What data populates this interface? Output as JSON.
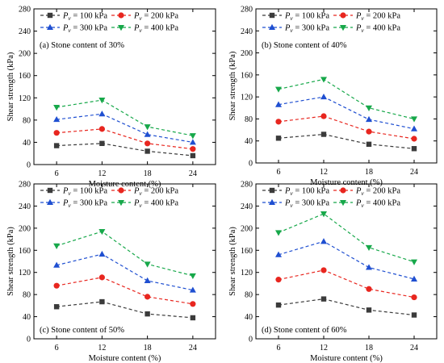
{
  "figure": {
    "colors": {
      "s100": "#3b3b3b",
      "s200": "#e8261f",
      "s300": "#1f4fd1",
      "s400": "#17a84a"
    },
    "legend_labels": [
      {
        "prefix": "P",
        "sub": "v",
        "suffix": " = 100 kPa"
      },
      {
        "prefix": "P",
        "sub": "v",
        "suffix": " = 200 kPa"
      },
      {
        "prefix": "P",
        "sub": "v",
        "suffix": " = 300 kPa"
      },
      {
        "prefix": "P",
        "sub": "v",
        "suffix": " = 400 kPa"
      }
    ]
  },
  "chart_data": [
    {
      "type": "line",
      "annotation": "(a) Stone content of 30%",
      "xlabel": "Moisture content (%)",
      "ylabel": "Shear strength (kPa)",
      "x": [
        6,
        12,
        18,
        24
      ],
      "xticks": [
        6,
        12,
        18,
        24
      ],
      "ylim": [
        0,
        280
      ],
      "yticks": [
        0,
        40,
        80,
        120,
        160,
        200,
        240,
        280
      ],
      "legend_position": "top-left",
      "series": [
        {
          "name": "Pv = 100 kPa",
          "marker": "square",
          "values": [
            34,
            38,
            24,
            16
          ]
        },
        {
          "name": "Pv = 200 kPa",
          "marker": "circle",
          "values": [
            57,
            64,
            38,
            28
          ]
        },
        {
          "name": "Pv = 300 kPa",
          "marker": "triangle-up",
          "values": [
            81,
            91,
            54,
            40
          ]
        },
        {
          "name": "Pv = 400 kPa",
          "marker": "triangle-down",
          "values": [
            103,
            116,
            68,
            52
          ]
        }
      ]
    },
    {
      "type": "line",
      "annotation": "(b) Stone content of 40%",
      "xlabel": "Moisture content (%)",
      "ylabel": "Shear strength (kPa)",
      "x": [
        6,
        12,
        18,
        24
      ],
      "xticks": [
        6,
        12,
        18,
        24
      ],
      "ylim": [
        0,
        280
      ],
      "yticks": [
        0,
        40,
        80,
        120,
        160,
        200,
        240,
        280
      ],
      "legend_position": "top-left",
      "series": [
        {
          "name": "Pv = 100 kPa",
          "marker": "square",
          "values": [
            45,
            52,
            34,
            26
          ]
        },
        {
          "name": "Pv = 200 kPa",
          "marker": "circle",
          "values": [
            75,
            85,
            57,
            44
          ]
        },
        {
          "name": "Pv = 300 kPa",
          "marker": "triangle-up",
          "values": [
            106,
            120,
            79,
            62
          ]
        },
        {
          "name": "Pv = 400 kPa",
          "marker": "triangle-down",
          "values": [
            134,
            152,
            100,
            80
          ]
        }
      ]
    },
    {
      "type": "line",
      "annotation": "(c) Stone content of 50%",
      "xlabel": "Moisture content (%)",
      "ylabel": "Shear strength (kPa)",
      "x": [
        6,
        12,
        18,
        24
      ],
      "xticks": [
        6,
        12,
        18,
        24
      ],
      "ylim": [
        0,
        280
      ],
      "yticks": [
        0,
        40,
        80,
        120,
        160,
        200,
        240,
        280
      ],
      "legend_position": "top-left",
      "series": [
        {
          "name": "Pv = 100 kPa",
          "marker": "square",
          "values": [
            58,
            67,
            45,
            38
          ]
        },
        {
          "name": "Pv = 200 kPa",
          "marker": "circle",
          "values": [
            96,
            111,
            76,
            63
          ]
        },
        {
          "name": "Pv = 300 kPa",
          "marker": "triangle-up",
          "values": [
            133,
            153,
            105,
            88
          ]
        },
        {
          "name": "Pv = 400 kPa",
          "marker": "triangle-down",
          "values": [
            168,
            194,
            135,
            114
          ]
        }
      ]
    },
    {
      "type": "line",
      "annotation": "(d) Stone content of 60%",
      "xlabel": "Moisture content (%)",
      "ylabel": "Shear strength (kPa)",
      "x": [
        6,
        12,
        18,
        24
      ],
      "xticks": [
        6,
        12,
        18,
        24
      ],
      "ylim": [
        0,
        280
      ],
      "yticks": [
        0,
        40,
        80,
        120,
        160,
        200,
        240,
        280
      ],
      "legend_position": "top-left",
      "series": [
        {
          "name": "Pv = 100 kPa",
          "marker": "square",
          "values": [
            61,
            72,
            52,
            43
          ]
        },
        {
          "name": "Pv = 200 kPa",
          "marker": "circle",
          "values": [
            107,
            124,
            90,
            75
          ]
        },
        {
          "name": "Pv = 300 kPa",
          "marker": "triangle-up",
          "values": [
            152,
            176,
            129,
            108
          ]
        },
        {
          "name": "Pv = 400 kPa",
          "marker": "triangle-down",
          "values": [
            192,
            226,
            165,
            139
          ]
        }
      ]
    }
  ]
}
